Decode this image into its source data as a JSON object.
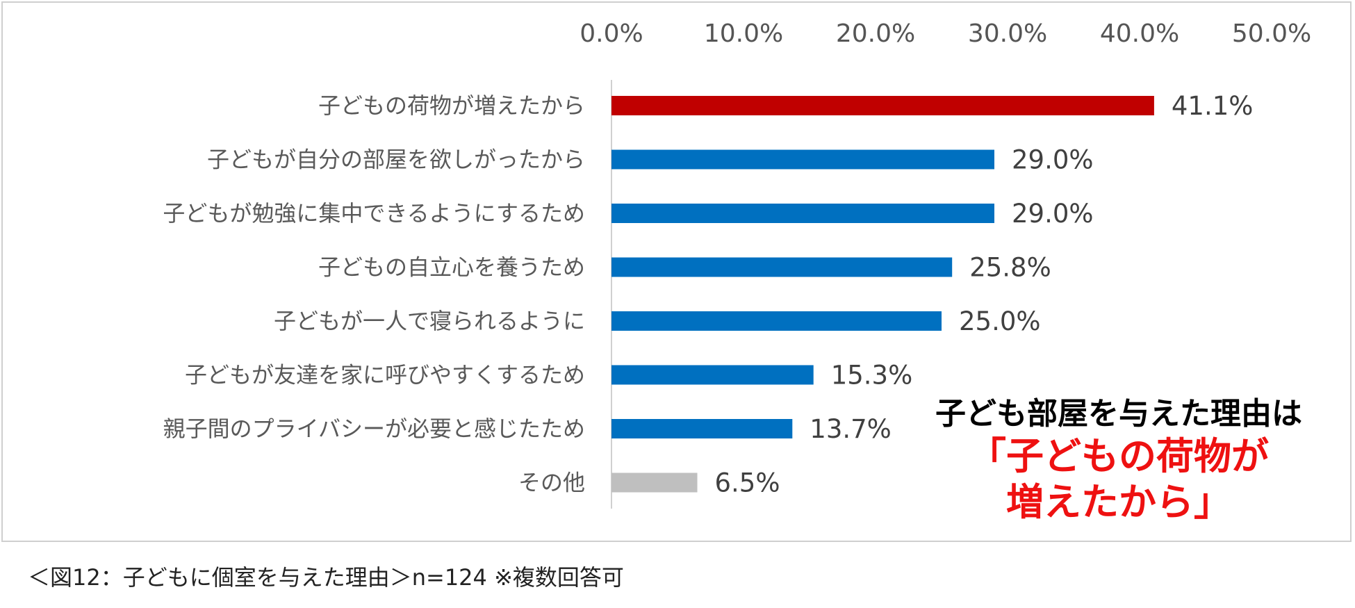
{
  "chart_data": {
    "type": "bar",
    "orientation": "horizontal",
    "categories": [
      "子どもの荷物が増えたから",
      "子どもが自分の部屋を欲しがったから",
      "子どもが勉強に集中できるようにするため",
      "子どもの自立心を養うため",
      "子どもが一人で寝られるように",
      "子どもが友達を家に呼びやすくするため",
      "親子間のプライバシーが必要と感じたため",
      "その他"
    ],
    "values": [
      41.1,
      29.0,
      29.0,
      25.8,
      25.0,
      15.3,
      13.7,
      6.5
    ],
    "value_labels": [
      "41.1%",
      "29.0%",
      "29.0%",
      "25.8%",
      "25.0%",
      "15.3%",
      "13.7%",
      "6.5%"
    ],
    "bar_colors": [
      "#c00000",
      "#0070c0",
      "#0070c0",
      "#0070c0",
      "#0070c0",
      "#0070c0",
      "#0070c0",
      "#bfbfbf"
    ],
    "xlim": [
      0,
      50
    ],
    "ticks": [
      0,
      10,
      20,
      30,
      40,
      50
    ],
    "tick_labels": [
      "0.0%",
      "10.0%",
      "20.0%",
      "30.0%",
      "40.0%",
      "50.0%"
    ],
    "x_axis_position": "top",
    "title": "",
    "xlabel": "",
    "ylabel": ""
  },
  "callout": {
    "title": "子ども部屋を与えた理由は",
    "emphasis_line1": "「子どもの荷物が",
    "emphasis_line2": "増えたから」"
  },
  "caption": "＜図12：子どもに個室を与えた理由＞n=124 ※複数回答可",
  "colors": {
    "highlight": "#c00000",
    "primary": "#0070c0",
    "other": "#bfbfbf",
    "callout_accent": "#ee1111"
  }
}
